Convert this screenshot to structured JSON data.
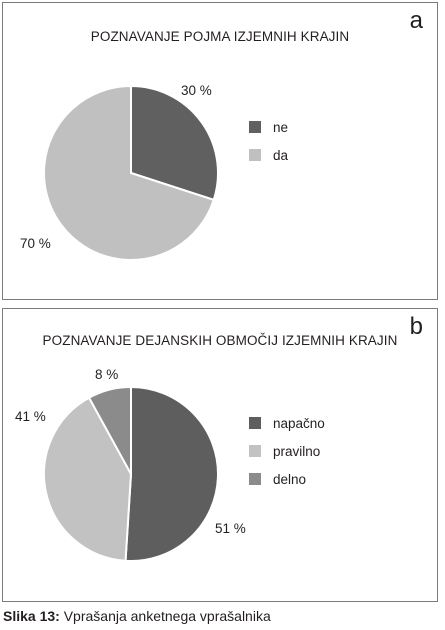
{
  "chart_data": [
    {
      "type": "pie",
      "title": "POZNAVANJE POJMA IZJEMNIH KRAJIN",
      "panel_label": "a",
      "slices": [
        {
          "label": "ne",
          "value": 30,
          "value_label": "30 %",
          "color": "#606060"
        },
        {
          "label": "da",
          "value": 70,
          "value_label": "70 %",
          "color": "#c0c0c0"
        }
      ],
      "legend": {
        "position": "right"
      }
    },
    {
      "type": "pie",
      "title": "POZNAVANJE DEJANSKIH OBMOČIJ IZJEMNIH KRAJIN",
      "panel_label": "b",
      "slices": [
        {
          "label": "napačno",
          "value": 51,
          "value_label": "51 %",
          "color": "#5e5e5e"
        },
        {
          "label": "pravilno",
          "value": 41,
          "value_label": "41 %",
          "color": "#c2c2c2"
        },
        {
          "label": "delno",
          "value": 8,
          "value_label": "8 %",
          "color": "#8b8b8b"
        }
      ],
      "legend": {
        "position": "right"
      }
    }
  ],
  "caption": {
    "lead": "Slika 13:",
    "text": " Vprašanja anketnega vprašalnika"
  }
}
